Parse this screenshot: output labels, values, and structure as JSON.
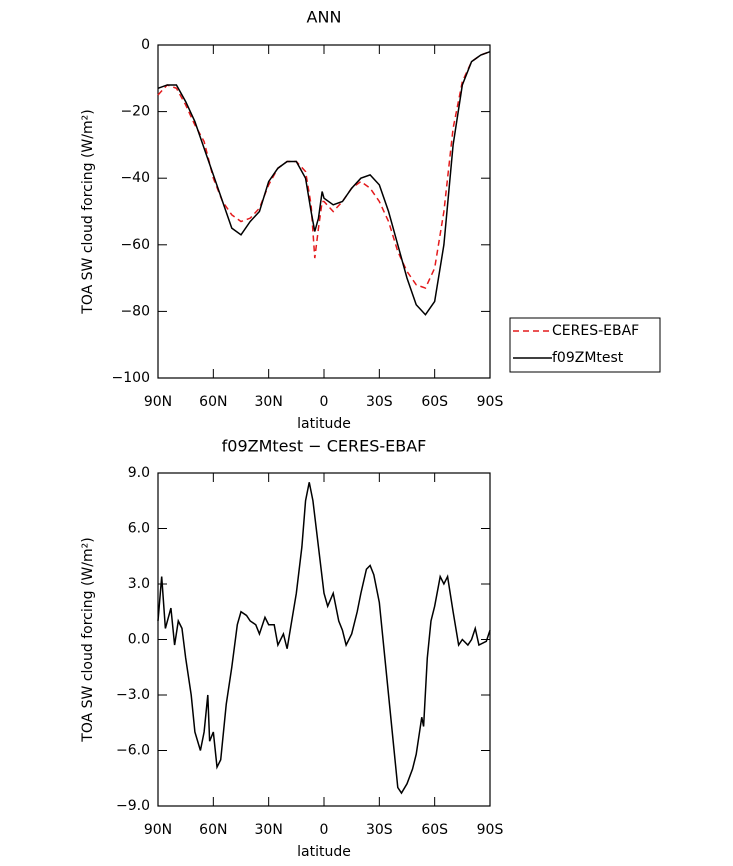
{
  "chart_data": [
    {
      "type": "line",
      "title": "ANN",
      "xlabel": "latitude",
      "ylabel": "TOA SW cloud forcing (W/m²)",
      "x": [
        90,
        85,
        80,
        75,
        70,
        65,
        60,
        55,
        50,
        45,
        40,
        35,
        30,
        25,
        20,
        15,
        10,
        7,
        5,
        3,
        1,
        0,
        -5,
        -10,
        -15,
        -20,
        -25,
        -30,
        -35,
        -40,
        -45,
        -50,
        -55,
        -60,
        -65,
        -70,
        -75,
        -80,
        -85,
        -90
      ],
      "series": [
        {
          "name": "CERES-EBAF",
          "color": "#e41a1c",
          "dashed": true,
          "values": [
            -15,
            -12,
            -13,
            -18,
            -24,
            -29,
            -40,
            -47,
            -51,
            -53,
            -52,
            -49,
            -42,
            -37,
            -35,
            -35,
            -38,
            -48,
            -64,
            -55,
            -47,
            -47,
            -50,
            -47,
            -43,
            -41,
            -43,
            -47,
            -53,
            -62,
            -68,
            -72,
            -73,
            -67,
            -50,
            -25,
            -11,
            -5,
            -3,
            -2
          ]
        },
        {
          "name": "f09ZMtest",
          "color": "#000000",
          "dashed": false,
          "values": [
            -13,
            -12,
            -12,
            -17,
            -23,
            -31,
            -39,
            -47,
            -55,
            -57,
            -53,
            -50,
            -41,
            -37,
            -35,
            -35,
            -40,
            -50,
            -56,
            -52,
            -44,
            -46,
            -48,
            -47,
            -43,
            -40,
            -39,
            -42,
            -50,
            -60,
            -70,
            -78,
            -81,
            -77,
            -60,
            -30,
            -12,
            -5,
            -3,
            -2
          ]
        }
      ],
      "xlim": [
        90,
        -90
      ],
      "xticks": [
        {
          "value": 90,
          "label": "90N"
        },
        {
          "value": 60,
          "label": "60N"
        },
        {
          "value": 30,
          "label": "30N"
        },
        0,
        {
          "value": -30,
          "label": "30S"
        },
        {
          "value": -60,
          "label": "60S"
        },
        {
          "value": -90,
          "label": "90S"
        }
      ],
      "ylim": [
        -100,
        0
      ],
      "yticks": [
        {
          "value": -100,
          "label": "−100"
        },
        {
          "value": -80,
          "label": "−80"
        },
        {
          "value": -60,
          "label": "−60"
        },
        {
          "value": -40,
          "label": "−40"
        },
        {
          "value": -20,
          "label": "−20"
        },
        0
      ],
      "legend": "outside-right"
    },
    {
      "type": "line",
      "title": "f09ZMtest − CERES-EBAF",
      "xlabel": "latitude",
      "ylabel": "TOA SW cloud forcing (W/m²)",
      "x": [
        90,
        88,
        86,
        83,
        81,
        79,
        77,
        75,
        72,
        70,
        67,
        65,
        63,
        62,
        60,
        58,
        56,
        53,
        50,
        47,
        45,
        42,
        40,
        37,
        35,
        32,
        30,
        27,
        25,
        22,
        20,
        18,
        15,
        12,
        10,
        8,
        6,
        3,
        0,
        -2,
        -5,
        -8,
        -10,
        -12,
        -15,
        -18,
        -20,
        -23,
        -25,
        -27,
        -30,
        -33,
        -35,
        -38,
        -40,
        -42,
        -45,
        -48,
        -50,
        -53,
        -54,
        -56,
        -58,
        -60,
        -63,
        -65,
        -67,
        -70,
        -73,
        -75,
        -78,
        -80,
        -82,
        -84,
        -88,
        -90
      ],
      "series": [
        {
          "color": "#000000",
          "dashed": false,
          "values": [
            1,
            3.4,
            0.6,
            1.7,
            -0.3,
            1,
            0.6,
            -1,
            -3,
            -5,
            -6,
            -5,
            -3,
            -5.5,
            -5,
            -6.9,
            -6.5,
            -3.5,
            -1.5,
            0.8,
            1.5,
            1.3,
            1,
            0.8,
            0.3,
            1.2,
            0.8,
            0.8,
            -0.3,
            0.3,
            -0.5,
            0.7,
            2.5,
            5,
            7.5,
            8.5,
            7.5,
            5,
            2.5,
            1.8,
            2.5,
            1,
            0.5,
            -0.3,
            0.3,
            1.5,
            2.5,
            3.8,
            4,
            3.5,
            2,
            -1,
            -3,
            -6,
            -8,
            -8.3,
            -7.8,
            -7,
            -6.2,
            -4.2,
            -4.7,
            -1,
            1,
            1.8,
            3.4,
            3,
            3.4,
            1.5,
            -0.3,
            0,
            -0.3,
            0,
            0.6,
            -0.3,
            -0.1,
            0.5
          ]
        }
      ],
      "xlim": [
        90,
        -90
      ],
      "xticks": [
        {
          "value": 90,
          "label": "90N"
        },
        {
          "value": 60,
          "label": "60N"
        },
        {
          "value": 30,
          "label": "30N"
        },
        0,
        {
          "value": -30,
          "label": "30S"
        },
        {
          "value": -60,
          "label": "60S"
        },
        {
          "value": -90,
          "label": "90S"
        }
      ],
      "ylim": [
        -9,
        9
      ],
      "yticks": [
        {
          "value": -9,
          "label": "−9.0"
        },
        {
          "value": -6,
          "label": "−6.0"
        },
        {
          "value": -3,
          "label": "−3.0"
        },
        {
          "value": 0,
          "label": "0.0"
        },
        {
          "value": 3,
          "label": "3.0"
        },
        {
          "value": 6,
          "label": "6.0"
        },
        {
          "value": 9,
          "label": "9.0"
        }
      ]
    }
  ]
}
